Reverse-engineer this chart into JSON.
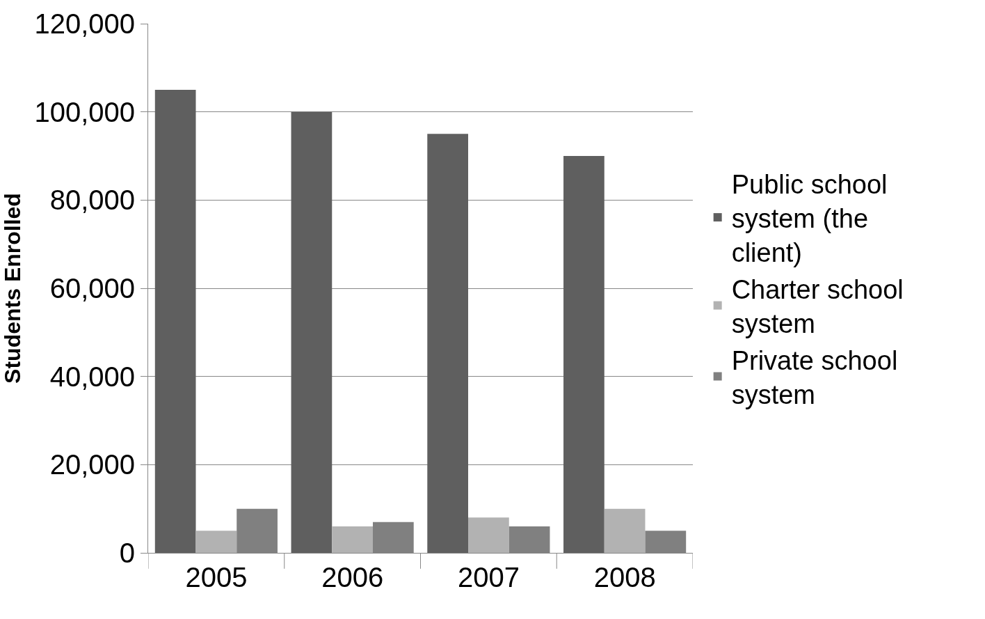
{
  "chart_data": {
    "type": "bar",
    "ylabel": "Students Enrolled",
    "categories": [
      "2005",
      "2006",
      "2007",
      "2008"
    ],
    "series": [
      {
        "name": "Public school system (the client)",
        "color": "#5f5f5f",
        "values": [
          105000,
          100000,
          95000,
          90000
        ]
      },
      {
        "name": "Charter school system",
        "color": "#b2b2b2",
        "values": [
          5000,
          6000,
          8000,
          10000
        ]
      },
      {
        "name": "Private school system",
        "color": "#808080",
        "values": [
          10000,
          7000,
          6000,
          5000
        ]
      }
    ],
    "ylim": [
      0,
      120000
    ],
    "yticks": [
      {
        "value": 0,
        "label": "0"
      },
      {
        "value": 20000,
        "label": "20,000"
      },
      {
        "value": 40000,
        "label": "40,000"
      },
      {
        "value": 60000,
        "label": "60,000"
      },
      {
        "value": 80000,
        "label": "80,000"
      },
      {
        "value": 100000,
        "label": "100,000"
      },
      {
        "value": 120000,
        "label": "120,000"
      }
    ],
    "grid": "y",
    "legend": "right"
  }
}
